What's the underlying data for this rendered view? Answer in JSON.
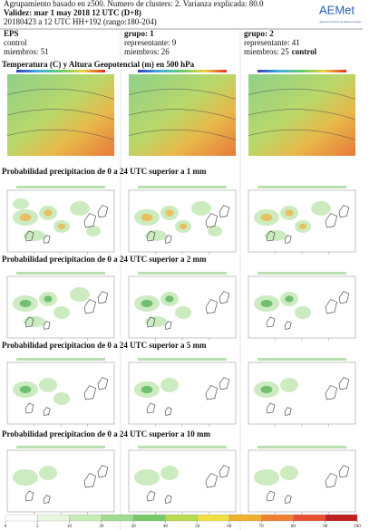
{
  "header": {
    "lines": [
      "Agrupamiento basado en z500. Numero de clusters: 2. Varianza explicada: 80.0",
      "Validez: mar 1 may 2018 12 UTC (D+8)",
      "20180423 a 12 UTC HH+192 (rango:180-204)"
    ]
  },
  "logo": {
    "name": "AEMet",
    "subtitle": "Agencia Estatal de Meteorología"
  },
  "columns": [
    {
      "title": "EPS",
      "line1": "control",
      "line2": "miembros: 51"
    },
    {
      "title": "grupo: 1",
      "line1": "representante: 9",
      "line2": "miembros: 26"
    },
    {
      "title": "grupo: 2",
      "line1": "representante: 41",
      "line2": "miembros: 25",
      "line2_bold": "control"
    }
  ],
  "sections": [
    "Temperatura (C) y Altura Geopotencial (m) en 500 hPa",
    "Probabilidad precipitacion de 0 a 24 UTC superior a 1 mm",
    "Probabilidad precipitacion de 0 a 24 UTC superior a 2 mm",
    "Probabilidad precipitacion de 0 a 24 UTC superior a 5 mm",
    "Probabilidad precipitacion de 0 a 24 UTC superior a 10 mm"
  ],
  "colorbar": {
    "labels": [
      0,
      5,
      10,
      20,
      30,
      40,
      50,
      60,
      70,
      80,
      90,
      100
    ]
  }
}
